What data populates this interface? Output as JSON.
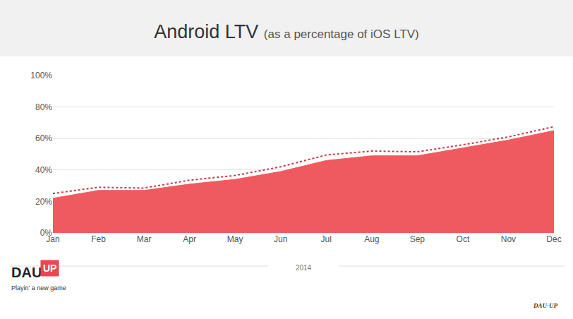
{
  "chart_data": {
    "type": "area",
    "title": "Android LTV",
    "subtitle": "(as a percentage of iOS LTV)",
    "x_label": "2014",
    "categories": [
      "Jan",
      "Feb",
      "Mar",
      "Apr",
      "May",
      "Jun",
      "Jul",
      "Aug",
      "Sep",
      "Oct",
      "Nov",
      "Dec"
    ],
    "series": [
      {
        "type": "area",
        "color": "#ef5a5f",
        "values": [
          22,
          27,
          27,
          31,
          34,
          39,
          46,
          49,
          49,
          54,
          59,
          65
        ]
      },
      {
        "type": "line",
        "color": "#c43a40",
        "line_style": "dotted",
        "values": [
          25,
          29,
          28.5,
          33.5,
          36.5,
          42,
          49.5,
          52,
          51.5,
          56,
          61,
          67.5
        ]
      }
    ],
    "ylim": [
      0,
      100
    ],
    "yticks": [
      {
        "value": 0,
        "label": "0%"
      },
      {
        "value": 20,
        "label": "20%"
      },
      {
        "value": 40,
        "label": "40%"
      },
      {
        "value": 60,
        "label": "60%"
      },
      {
        "value": 80,
        "label": "80%"
      },
      {
        "value": 100,
        "label": "100%"
      }
    ],
    "grid": true,
    "annotations": [
      "DAU",
      "UP",
      "Playin' a new game",
      "DAU-UP"
    ]
  }
}
